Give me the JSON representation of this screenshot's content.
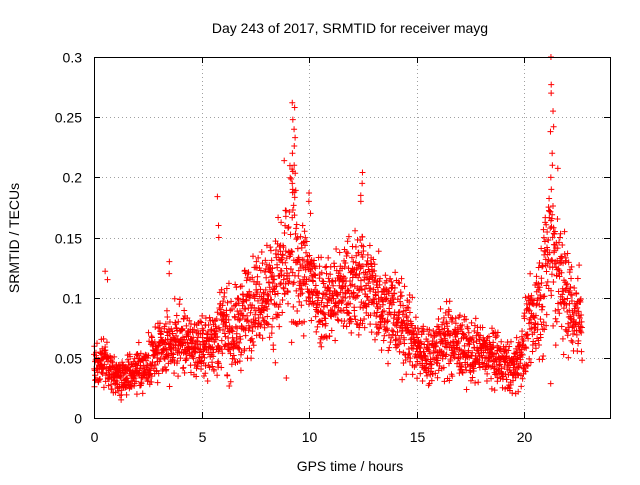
{
  "chart_data": {
    "type": "scatter",
    "title": "Day 243 of 2017, SRMTID for receiver mayg",
    "xlabel": "GPS time / hours",
    "ylabel": "SRMTID / TECUs",
    "xlim": [
      0,
      24
    ],
    "ylim": [
      0,
      0.3
    ],
    "xticks": [
      0,
      5,
      10,
      15,
      20
    ],
    "xtick_labels": [
      "0",
      "5",
      "10",
      "15",
      "20"
    ],
    "yticks": [
      0,
      0.05,
      0.1,
      0.15,
      0.2,
      0.25,
      0.3
    ],
    "ytick_labels": [
      "0",
      "0.05",
      "0.1",
      "0.15",
      "0.2",
      "0.25",
      "0.3"
    ],
    "grid": true,
    "marker": "plus",
    "color": "#ff0000",
    "series": [
      {
        "name": "SRMTID",
        "envelope": [
          [
            0.0,
            0.04,
            0.015
          ],
          [
            0.5,
            0.045,
            0.012
          ],
          [
            1.0,
            0.035,
            0.01
          ],
          [
            1.5,
            0.037,
            0.01
          ],
          [
            2.0,
            0.04,
            0.012
          ],
          [
            2.5,
            0.045,
            0.013
          ],
          [
            3.0,
            0.055,
            0.015
          ],
          [
            3.5,
            0.06,
            0.016
          ],
          [
            4.0,
            0.065,
            0.017
          ],
          [
            4.5,
            0.06,
            0.016
          ],
          [
            5.0,
            0.058,
            0.015
          ],
          [
            5.5,
            0.065,
            0.017
          ],
          [
            6.0,
            0.075,
            0.025
          ],
          [
            6.5,
            0.07,
            0.022
          ],
          [
            7.0,
            0.085,
            0.025
          ],
          [
            7.5,
            0.1,
            0.025
          ],
          [
            8.0,
            0.105,
            0.025
          ],
          [
            8.5,
            0.11,
            0.03
          ],
          [
            9.0,
            0.13,
            0.05
          ],
          [
            9.3,
            0.14,
            0.055
          ],
          [
            9.5,
            0.12,
            0.03
          ],
          [
            10.0,
            0.115,
            0.03
          ],
          [
            10.5,
            0.1,
            0.025
          ],
          [
            11.0,
            0.1,
            0.025
          ],
          [
            11.5,
            0.105,
            0.025
          ],
          [
            12.0,
            0.11,
            0.027
          ],
          [
            12.5,
            0.115,
            0.03
          ],
          [
            13.0,
            0.105,
            0.025
          ],
          [
            13.5,
            0.095,
            0.025
          ],
          [
            14.0,
            0.085,
            0.025
          ],
          [
            14.5,
            0.075,
            0.022
          ],
          [
            15.0,
            0.06,
            0.018
          ],
          [
            15.5,
            0.05,
            0.017
          ],
          [
            16.0,
            0.06,
            0.018
          ],
          [
            16.5,
            0.065,
            0.02
          ],
          [
            17.0,
            0.06,
            0.018
          ],
          [
            17.5,
            0.055,
            0.016
          ],
          [
            18.0,
            0.055,
            0.016
          ],
          [
            18.5,
            0.05,
            0.015
          ],
          [
            19.0,
            0.045,
            0.014
          ],
          [
            19.5,
            0.04,
            0.013
          ],
          [
            20.0,
            0.06,
            0.02
          ],
          [
            20.5,
            0.085,
            0.025
          ],
          [
            21.0,
            0.12,
            0.04
          ],
          [
            21.3,
            0.15,
            0.06
          ],
          [
            21.6,
            0.12,
            0.04
          ],
          [
            22.0,
            0.1,
            0.03
          ],
          [
            22.3,
            0.09,
            0.027
          ],
          [
            22.7,
            0.08,
            0.025
          ]
        ],
        "peaks": [
          {
            "x": 9.3,
            "values": [
              0.262,
              0.258,
              0.248,
              0.24,
              0.233,
              0.22,
              0.21,
              0.205,
              0.195,
              0.19
            ]
          },
          {
            "x": 21.3,
            "values": [
              0.3,
              0.277,
              0.27,
              0.255,
              0.242,
              0.238,
              0.22,
              0.21,
              0.2,
              0.19
            ]
          },
          {
            "x": 12.5,
            "values": [
              0.204,
              0.195,
              0.185,
              0.18
            ]
          },
          {
            "x": 5.8,
            "values": [
              0.184,
              0.16,
              0.15
            ]
          },
          {
            "x": 10.0,
            "values": [
              0.187,
              0.18,
              0.17
            ]
          },
          {
            "x": 0.6,
            "values": [
              0.122,
              0.115
            ]
          },
          {
            "x": 3.5,
            "values": [
              0.13,
              0.12
            ]
          }
        ]
      }
    ]
  }
}
